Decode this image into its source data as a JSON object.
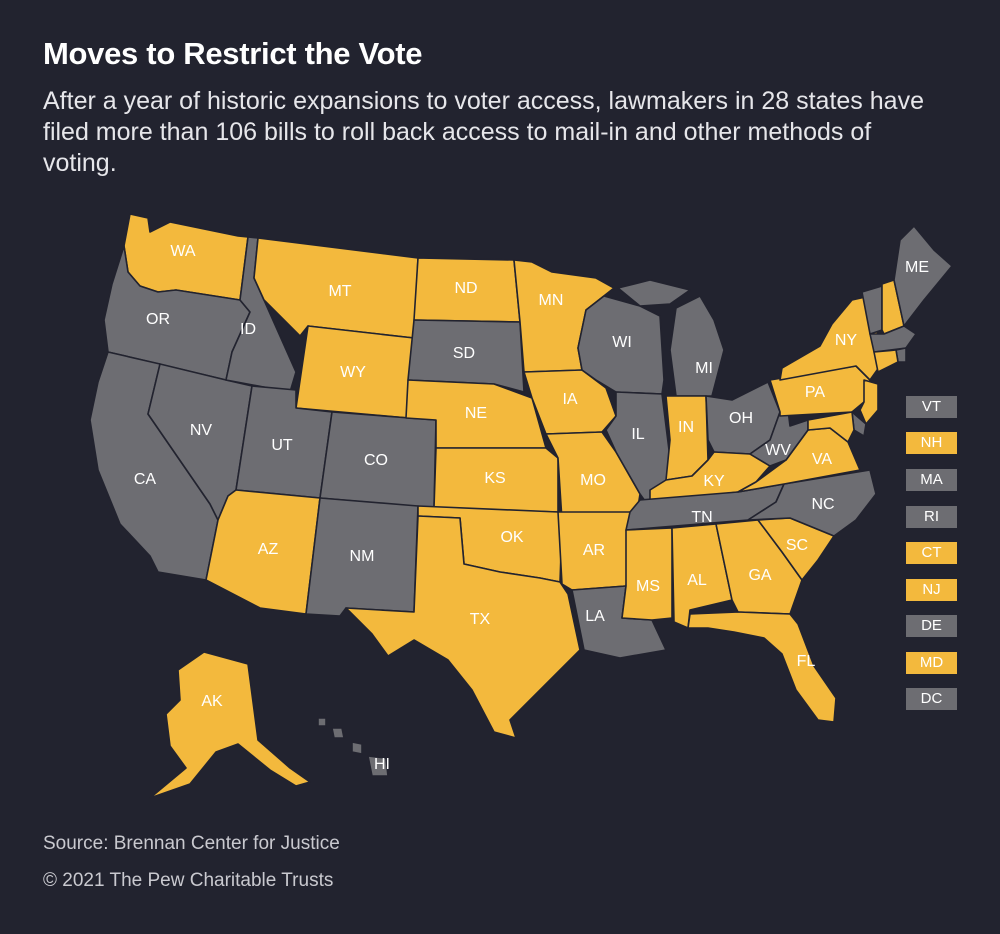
{
  "title": "Moves to Restrict the Vote",
  "subtitle": "After a year of historic expansions to voter access, lawmakers in 28 states have filed more than 106 bills to roll back access to mail-in and other methods of voting.",
  "source": "Source: Brennan Center for Justice",
  "credit": "© 2021 The Pew Charitable Trusts",
  "colors": {
    "background": "#22232f",
    "restrict": "#f3b93d",
    "other": "#6d6d72"
  },
  "states": {
    "WA": "restrict",
    "OR": "other",
    "CA": "other",
    "NV": "other",
    "ID": "other",
    "MT": "restrict",
    "WY": "restrict",
    "UT": "other",
    "AZ": "restrict",
    "CO": "other",
    "NM": "other",
    "ND": "restrict",
    "SD": "other",
    "NE": "restrict",
    "KS": "restrict",
    "OK": "restrict",
    "TX": "restrict",
    "MN": "restrict",
    "IA": "restrict",
    "MO": "restrict",
    "AR": "restrict",
    "LA": "other",
    "WI": "other",
    "IL": "other",
    "MI": "other",
    "IN": "restrict",
    "OH": "other",
    "KY": "restrict",
    "TN": "other",
    "MS": "restrict",
    "AL": "restrict",
    "GA": "restrict",
    "FL": "restrict",
    "SC": "restrict",
    "NC": "other",
    "VA": "restrict",
    "WV": "other",
    "PA": "restrict",
    "NY": "restrict",
    "ME": "other",
    "AK": "restrict",
    "HI": "other",
    "VT": "other",
    "NH": "restrict",
    "MA": "other",
    "RI": "other",
    "CT": "restrict",
    "NJ": "restrict",
    "DE": "other",
    "MD": "restrict",
    "DC": "other"
  },
  "labels": [
    "WA",
    "OR",
    "CA",
    "NV",
    "ID",
    "MT",
    "WY",
    "UT",
    "AZ",
    "CO",
    "NM",
    "ND",
    "SD",
    "NE",
    "KS",
    "OK",
    "TX",
    "MN",
    "IA",
    "MO",
    "AR",
    "LA",
    "WI",
    "IL",
    "MI",
    "IN",
    "OH",
    "KY",
    "TN",
    "MS",
    "AL",
    "GA",
    "FL",
    "SC",
    "NC",
    "VA",
    "WV",
    "PA",
    "NY",
    "ME",
    "AK",
    "HI"
  ],
  "east_boxes": [
    "VT",
    "NH",
    "MA",
    "RI",
    "CT",
    "NJ",
    "DE",
    "MD",
    "DC"
  ]
}
